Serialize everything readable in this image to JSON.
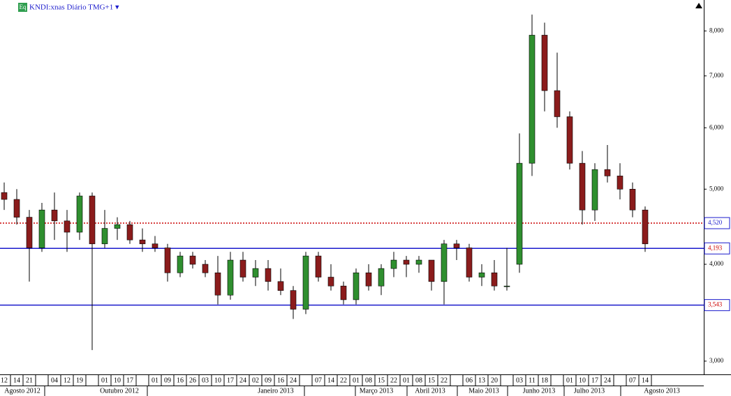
{
  "chart_data": {
    "type": "candlestick",
    "title": "KNDI:xnas Diário TMG+1 ▾",
    "badge": "Eq",
    "log_scale": true,
    "ylim": [
      2884,
      8770
    ],
    "yticks": [
      {
        "value": 3000,
        "label": "3,000"
      },
      {
        "value": 4000,
        "label": "4,000"
      },
      {
        "value": 5000,
        "label": "5,000"
      },
      {
        "value": 6000,
        "label": "6,000"
      },
      {
        "value": 7000,
        "label": "7,000"
      },
      {
        "value": 8000,
        "label": "8,000"
      }
    ],
    "up_color": "#2f8f2f",
    "down_color": "#8b1c1c",
    "categories": [
      "12",
      "14",
      "21",
      null,
      "04",
      "12",
      "19",
      null,
      "01",
      "10",
      "17",
      null,
      "01",
      "09",
      "16",
      "26",
      "03",
      "10",
      "17",
      "24",
      "02",
      "09",
      "16",
      "24",
      null,
      "07",
      "14",
      "22",
      "01",
      "08",
      "15",
      "22",
      "01",
      "08",
      "15",
      "22",
      null,
      "06",
      "13",
      "20",
      null,
      "03",
      "11",
      "18",
      null,
      "01",
      "10",
      "17",
      "24",
      null,
      "07",
      "14"
    ],
    "months": [
      "Agosto 2012",
      "Outubro 2012",
      "Janeiro 2013",
      "Março 2013",
      "Abril 2013",
      "Maio 2013",
      "Junho 2013",
      "Julho 2013",
      "Agosto 2013"
    ],
    "open": [
      4950,
      4850,
      4600,
      4200,
      4700,
      4550,
      4400,
      4900,
      4250,
      4450,
      4500,
      4300,
      4250,
      4200,
      3900,
      4100,
      4000,
      3900,
      3650,
      4050,
      3850,
      3950,
      3800,
      3700,
      3500,
      4100,
      3850,
      3750,
      3600,
      3900,
      3750,
      3950,
      4050,
      4000,
      4050,
      3800,
      4250,
      4200,
      3850,
      3900,
      3750,
      4000,
      5400,
      7900,
      6700,
      6200,
      5400,
      4700,
      5300,
      5200,
      5000,
      4700
    ],
    "high": [
      5100,
      5000,
      4700,
      4800,
      4950,
      4700,
      4950,
      4950,
      4700,
      4600,
      4550,
      4450,
      4350,
      4250,
      4150,
      4150,
      4050,
      4100,
      4150,
      4150,
      4050,
      4050,
      3950,
      3750,
      4150,
      4150,
      4000,
      3800,
      3950,
      4000,
      4000,
      4150,
      4100,
      4100,
      4050,
      4300,
      4300,
      4250,
      4000,
      4050,
      4200,
      5900,
      8400,
      8200,
      7500,
      6300,
      5600,
      5400,
      5700,
      5400,
      5100,
      4750
    ],
    "low": [
      4700,
      4500,
      3800,
      4150,
      4300,
      4150,
      4300,
      3100,
      4200,
      4300,
      4250,
      4150,
      4150,
      3800,
      3850,
      3950,
      3850,
      3550,
      3600,
      3800,
      3750,
      3700,
      3650,
      3400,
      3450,
      3800,
      3700,
      3550,
      3550,
      3700,
      3650,
      3850,
      3850,
      3900,
      3700,
      3550,
      4050,
      3800,
      3750,
      3700,
      3700,
      3900,
      5200,
      6300,
      6000,
      5300,
      4500,
      4550,
      5100,
      4850,
      4600,
      4150
    ],
    "close": [
      4850,
      4600,
      4200,
      4700,
      4550,
      4400,
      4900,
      4250,
      4450,
      4500,
      4300,
      4250,
      4200,
      3900,
      4100,
      4000,
      3900,
      3650,
      4050,
      3850,
      3950,
      3800,
      3700,
      3500,
      4100,
      3850,
      3750,
      3600,
      3900,
      3750,
      3950,
      4050,
      4000,
      4050,
      3800,
      4250,
      4200,
      3850,
      3900,
      3750,
      3750,
      5400,
      7900,
      6700,
      6200,
      5400,
      4700,
      5300,
      5200,
      5000,
      4700,
      4250
    ],
    "levels": [
      {
        "value": 4520,
        "label": "4,520",
        "color": "#cc0000",
        "style": "dotted",
        "text_color": "#1a1acc"
      },
      {
        "value": 4193,
        "label": "4,193",
        "color": "#1a1acc",
        "style": "solid",
        "text_color": "#cc0000"
      },
      {
        "value": 3543,
        "label": "3,543",
        "color": "#1a1acc",
        "style": "solid",
        "text_color": "#cc0000"
      }
    ]
  }
}
